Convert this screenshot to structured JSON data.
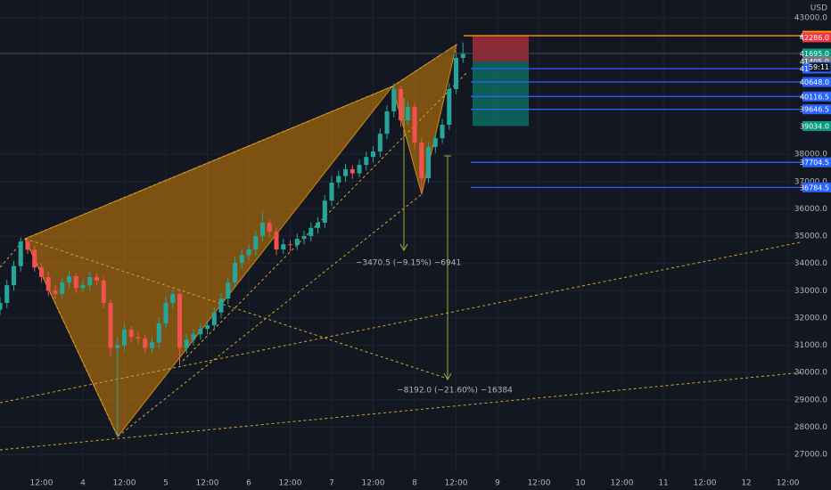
{
  "chart_data": {
    "type": "candlestick",
    "currency": "USD",
    "up_color": "#26a69a",
    "down_color": "#ef5350",
    "grid": true,
    "xlim": [
      0,
      240.5
    ],
    "ylim": [
      25694,
      43653
    ],
    "xticks": [
      {
        "value": 12,
        "label": "12:00"
      },
      {
        "value": 24,
        "label": "4"
      },
      {
        "value": 36,
        "label": "12:00"
      },
      {
        "value": 48,
        "label": "5"
      },
      {
        "value": 60,
        "label": "12:00"
      },
      {
        "value": 72,
        "label": "6"
      },
      {
        "value": 84,
        "label": "12:00"
      },
      {
        "value": 96,
        "label": "7"
      },
      {
        "value": 108,
        "label": "12:00"
      },
      {
        "value": 120,
        "label": "8"
      },
      {
        "value": 132,
        "label": "12:00"
      },
      {
        "value": 144,
        "label": "9"
      },
      {
        "value": 156,
        "label": "12:00"
      },
      {
        "value": 168,
        "label": "10"
      },
      {
        "value": 180,
        "label": "12:00"
      },
      {
        "value": 192,
        "label": "11"
      },
      {
        "value": 204,
        "label": "12:00"
      },
      {
        "value": 216,
        "label": "12"
      },
      {
        "value": 228,
        "label": "12:00"
      }
    ],
    "yticks": [
      {
        "value": 43000,
        "label": "43000.0"
      },
      {
        "value": 38000,
        "label": "38000.0"
      },
      {
        "value": 37000,
        "label": "37000.0"
      },
      {
        "value": 36000,
        "label": "36000.0"
      },
      {
        "value": 35000,
        "label": "35000.0"
      },
      {
        "value": 34000,
        "label": "34000.0"
      },
      {
        "value": 33000,
        "label": "33000.0"
      },
      {
        "value": 32000,
        "label": "32000.0"
      },
      {
        "value": 31000,
        "label": "31000.0"
      },
      {
        "value": 30000,
        "label": "30000.0"
      },
      {
        "value": 29000,
        "label": "29000.0"
      },
      {
        "value": 28000,
        "label": "28000.0"
      },
      {
        "value": 27000,
        "label": "27000.0"
      }
    ],
    "x": [
      0,
      2,
      4,
      6,
      8,
      10,
      12,
      14,
      16,
      18,
      20,
      22,
      24,
      26,
      28,
      30,
      32,
      34,
      36,
      38,
      40,
      42,
      44,
      46,
      48,
      50,
      52,
      54,
      56,
      58,
      60,
      62,
      64,
      66,
      68,
      70,
      72,
      74,
      76,
      78,
      80,
      82,
      84,
      86,
      88,
      90,
      92,
      94,
      96,
      98,
      100,
      102,
      104,
      106,
      108,
      110,
      112,
      114,
      116,
      118,
      120,
      122,
      124,
      126,
      128,
      130,
      132,
      134
    ],
    "open": [
      32300,
      32550,
      33200,
      33900,
      34800,
      34500,
      33850,
      33500,
      33000,
      32880,
      33300,
      33530,
      33100,
      33200,
      33500,
      33370,
      32550,
      30900,
      31000,
      31570,
      31300,
      31250,
      30900,
      31100,
      31800,
      32550,
      32880,
      30900,
      31200,
      31400,
      31600,
      31730,
      32200,
      32710,
      33300,
      34020,
      34300,
      34510,
      35000,
      35490,
      35160,
      34510,
      34700,
      34670,
      34900,
      35000,
      35300,
      35490,
      36300,
      36960,
      37200,
      37450,
      37300,
      37610,
      37900,
      38100,
      38750,
      39570,
      40390,
      39240,
      39730,
      38430,
      37120,
      38270,
      38590,
      39080,
      40390,
      41530
    ],
    "high": [
      32750,
      33400,
      34100,
      34950,
      34900,
      34650,
      34000,
      33700,
      33200,
      33500,
      33750,
      33650,
      33400,
      33700,
      33650,
      33500,
      32700,
      31300,
      31800,
      31700,
      31500,
      31400,
      31300,
      32000,
      32800,
      33050,
      33000,
      31400,
      31600,
      31800,
      31900,
      32400,
      32900,
      33500,
      34250,
      34500,
      34700,
      35200,
      35910,
      35600,
      35300,
      34900,
      34850,
      35100,
      35200,
      35500,
      35700,
      36500,
      37200,
      37400,
      37650,
      37600,
      37800,
      38100,
      38300,
      38950,
      39800,
      40600,
      40500,
      39950,
      39850,
      38600,
      38450,
      38800,
      39300,
      40600,
      41800,
      42100
    ],
    "low": [
      32100,
      32350,
      33000,
      33700,
      34350,
      33700,
      33300,
      32800,
      32700,
      32700,
      33100,
      32900,
      32950,
      33000,
      33200,
      32350,
      30600,
      27650,
      30800,
      31100,
      31050,
      30700,
      30700,
      30900,
      31600,
      32350,
      30270,
      30700,
      31000,
      31200,
      31400,
      31550,
      32000,
      32500,
      33100,
      33800,
      34100,
      34300,
      34800,
      34950,
      34300,
      34350,
      34450,
      34500,
      34700,
      34800,
      35100,
      35300,
      36100,
      36750,
      37000,
      37100,
      37150,
      37400,
      37700,
      37900,
      38550,
      39350,
      39000,
      39050,
      38200,
      36530,
      36950,
      38050,
      38400,
      38900,
      40200,
      41350
    ],
    "close": [
      32550,
      33200,
      33900,
      34800,
      34500,
      33850,
      33500,
      33000,
      32880,
      33300,
      33530,
      33100,
      33200,
      33500,
      33370,
      32550,
      30900,
      31000,
      31570,
      31300,
      31250,
      30900,
      31100,
      31800,
      32550,
      32880,
      30900,
      31200,
      31400,
      31600,
      31730,
      32200,
      32710,
      33300,
      34020,
      34300,
      34510,
      35000,
      35490,
      35160,
      34510,
      34700,
      34670,
      34900,
      35000,
      35300,
      35490,
      36300,
      36960,
      37200,
      37450,
      37300,
      37610,
      37900,
      38100,
      38750,
      39570,
      40390,
      39240,
      39730,
      38430,
      37120,
      38270,
      38590,
      39080,
      40390,
      41530,
      41695
    ],
    "price_labels": [
      {
        "value": 42345,
        "label": "42345.0",
        "color": "#ff9800",
        "line": true
      },
      {
        "value": 42286,
        "label": "42286.0",
        "color": "#f23645",
        "line": false
      },
      {
        "value": 41695,
        "label": "41695.0",
        "color": "#089981",
        "line": false
      },
      {
        "value": 41405,
        "label": "41405.0",
        "color": "#787b86",
        "line": false
      },
      {
        "value": 41139,
        "label": "41139.0",
        "color": "#2962ff",
        "line": true
      },
      {
        "value": 40648,
        "label": "40648.0",
        "color": "#2962ff",
        "line": true
      },
      {
        "value": 40116.5,
        "label": "40116.5",
        "color": "#2962ff",
        "line": true
      },
      {
        "value": 39646.5,
        "label": "39646.5",
        "color": "#2962ff",
        "line": true
      },
      {
        "value": 39034,
        "label": "39034.0",
        "color": "#089981",
        "line": false
      },
      {
        "value": 37704.5,
        "label": "37704.5",
        "color": "#2962ff",
        "line": true
      },
      {
        "value": 36784.5,
        "label": "36784.5",
        "color": "#2962ff",
        "line": true
      }
    ],
    "countdown": "59:11",
    "annotations": [
      "−3470.5 (−9.15%) −6941",
      "−8192.0 (−21.60%) −16384"
    ]
  }
}
